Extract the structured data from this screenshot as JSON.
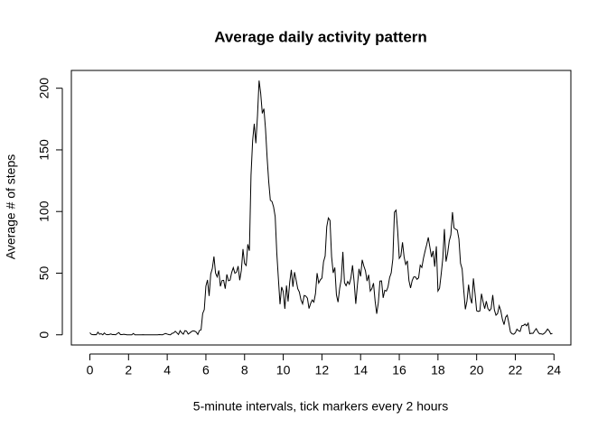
{
  "chart_data": {
    "type": "line",
    "title": "Average daily activity pattern",
    "xlabel": "5-minute intervals, tick markers every 2 hours",
    "ylabel": "Average # of steps",
    "color": "#000000",
    "xlim": [
      -0.957,
      24.873
    ],
    "ylim": [
      -8.25,
      214.42
    ],
    "xticks": [
      0,
      2,
      4,
      6,
      8,
      10,
      12,
      14,
      16,
      18,
      20,
      22,
      24
    ],
    "yticks": [
      0,
      50,
      100,
      150,
      200
    ],
    "x": [
      0,
      0.083,
      0.167,
      0.25,
      0.333,
      0.417,
      0.5,
      0.583,
      0.667,
      0.75,
      0.833,
      0.917,
      1,
      1.083,
      1.167,
      1.25,
      1.333,
      1.417,
      1.5,
      1.583,
      1.667,
      1.75,
      1.833,
      1.917,
      2,
      2.083,
      2.167,
      2.25,
      2.333,
      2.417,
      2.5,
      2.583,
      2.667,
      2.75,
      2.833,
      2.917,
      3,
      3.083,
      3.167,
      3.25,
      3.333,
      3.417,
      3.5,
      3.583,
      3.667,
      3.75,
      3.833,
      3.917,
      4,
      4.083,
      4.167,
      4.25,
      4.333,
      4.417,
      4.5,
      4.583,
      4.667,
      4.75,
      4.833,
      4.917,
      5,
      5.083,
      5.167,
      5.25,
      5.333,
      5.417,
      5.5,
      5.583,
      5.667,
      5.75,
      5.833,
      5.917,
      6,
      6.083,
      6.167,
      6.25,
      6.333,
      6.417,
      6.5,
      6.583,
      6.667,
      6.75,
      6.833,
      6.917,
      7,
      7.083,
      7.167,
      7.25,
      7.333,
      7.417,
      7.5,
      7.583,
      7.667,
      7.75,
      7.833,
      7.917,
      8,
      8.083,
      8.167,
      8.25,
      8.333,
      8.417,
      8.5,
      8.583,
      8.667,
      8.75,
      8.833,
      8.917,
      9,
      9.083,
      9.167,
      9.25,
      9.333,
      9.417,
      9.5,
      9.583,
      9.667,
      9.75,
      9.833,
      9.917,
      10,
      10.083,
      10.167,
      10.25,
      10.333,
      10.417,
      10.5,
      10.583,
      10.667,
      10.75,
      10.833,
      10.917,
      11,
      11.083,
      11.167,
      11.25,
      11.333,
      11.417,
      11.5,
      11.583,
      11.667,
      11.75,
      11.833,
      11.917,
      12,
      12.083,
      12.167,
      12.25,
      12.333,
      12.417,
      12.5,
      12.583,
      12.667,
      12.75,
      12.833,
      12.917,
      13,
      13.083,
      13.167,
      13.25,
      13.333,
      13.417,
      13.5,
      13.583,
      13.667,
      13.75,
      13.833,
      13.917,
      14,
      14.083,
      14.167,
      14.25,
      14.333,
      14.417,
      14.5,
      14.583,
      14.667,
      14.75,
      14.833,
      14.917,
      15,
      15.083,
      15.167,
      15.25,
      15.333,
      15.417,
      15.5,
      15.583,
      15.667,
      15.75,
      15.833,
      15.917,
      16,
      16.083,
      16.167,
      16.25,
      16.333,
      16.417,
      16.5,
      16.583,
      16.667,
      16.75,
      16.833,
      16.917,
      17,
      17.083,
      17.167,
      17.25,
      17.333,
      17.417,
      17.5,
      17.583,
      17.667,
      17.75,
      17.833,
      17.917,
      18,
      18.083,
      18.167,
      18.25,
      18.333,
      18.417,
      18.5,
      18.583,
      18.667,
      18.75,
      18.833,
      18.917,
      19,
      19.083,
      19.167,
      19.25,
      19.333,
      19.417,
      19.5,
      19.583,
      19.667,
      19.75,
      19.833,
      19.917,
      20,
      20.083,
      20.167,
      20.25,
      20.333,
      20.417,
      20.5,
      20.583,
      20.667,
      20.75,
      20.833,
      20.917,
      21,
      21.083,
      21.167,
      21.25,
      21.333,
      21.417,
      21.5,
      21.583,
      21.667,
      21.75,
      21.833,
      21.917,
      22,
      22.083,
      22.167,
      22.25,
      22.333,
      22.417,
      22.5,
      22.583,
      22.667,
      22.75,
      22.833,
      22.917,
      23,
      23.083,
      23.167,
      23.25,
      23.333,
      23.417,
      23.5,
      23.583,
      23.667,
      23.75,
      23.833,
      23.917
    ],
    "values": [
      1.7,
      0.3,
      0.1,
      0.2,
      0.1,
      2.1,
      0.5,
      0.9,
      0,
      1.5,
      0.3,
      0.1,
      0.3,
      0.7,
      0.2,
      0.3,
      0,
      1.1,
      1.8,
      0.2,
      0.2,
      0.4,
      0.3,
      0,
      0,
      0,
      0,
      1.1,
      0,
      0,
      0,
      0,
      0,
      0.1,
      0,
      0,
      0,
      0,
      0,
      0,
      0,
      0,
      0,
      0.2,
      0.1,
      0,
      0.6,
      1.1,
      0.6,
      0.2,
      0,
      1.2,
      1.5,
      2.9,
      1.6,
      0.3,
      3.4,
      1.6,
      0.5,
      3.4,
      3.0,
      0.6,
      1.5,
      2.6,
      3.2,
      3.0,
      2.2,
      0.3,
      3.5,
      4.0,
      17.2,
      20.5,
      39.5,
      44.5,
      31.5,
      49.3,
      53.8,
      63.5,
      50,
      47,
      52.2,
      39.3,
      44,
      44.2,
      37.4,
      49,
      43.8,
      44.4,
      50.5,
      54.5,
      49.9,
      50.8,
      55.7,
      44.3,
      52.3,
      69.5,
      57.8,
      56.2,
      73.4,
      68.2,
      129.4,
      157.5,
      171.2,
      155.4,
      177.3,
      206.2,
      195.9,
      179.6,
      183.4,
      167,
      143.5,
      124,
      109.1,
      108.1,
      103.7,
      95.9,
      66.2,
      45.2,
      24.8,
      38.8,
      35,
      21.1,
      40,
      27,
      42.4,
      52.7,
      38.9,
      50.8,
      44.3,
      37.4,
      34.7,
      28.3,
      25.1,
      31.9,
      31.4,
      29.7,
      21.3,
      25.5,
      28.3,
      26.5,
      33.4,
      50,
      42,
      44.6,
      46,
      59.2,
      63.9,
      87.7,
      94.8,
      92.8,
      63.4,
      50.2,
      54.5,
      32.4,
      26.5,
      37.7,
      45.1,
      67.3,
      42.3,
      39.8,
      43.3,
      41,
      46.2,
      56.4,
      42.8,
      25.1,
      40,
      53.5,
      47.4,
      60.8,
      55.8,
      52,
      43.6,
      48.7,
      35.5,
      37.5,
      41.9,
      27.5,
      17.1,
      26.1,
      43.6,
      43.7,
      30,
      36.1,
      35.5,
      38.8,
      46.4,
      50.2,
      61.5,
      99.5,
      101.1,
      84.3,
      62,
      64,
      75,
      63,
      57,
      60,
      44,
      38,
      44,
      47,
      47,
      45,
      46.2,
      56.4,
      54.6,
      62.1,
      67.8,
      73.1,
      79,
      71,
      63,
      68,
      55.2,
      71.8,
      35.5,
      37.8,
      49.3,
      62,
      85.8,
      59.4,
      66.2,
      76,
      81.1,
      99.5,
      86.6,
      85.6,
      84.9,
      77.8,
      58,
      53.4,
      36.3,
      20.7,
      27.4,
      40.7,
      30.2,
      25.5,
      45.7,
      33.5,
      19.6,
      19,
      19.3,
      33.3,
      26.8,
      21.2,
      27.3,
      21.3,
      19.5,
      21.3,
      32.3,
      20.2,
      15.9,
      17.2,
      23.5,
      19.5,
      12.5,
      8.2,
      14.4,
      15.9,
      9.4,
      2.2,
      0.8,
      0.5,
      1.6,
      4.6,
      3.3,
      2.8,
      7.3,
      7.6,
      8.7,
      7.3,
      9.5,
      0.9,
      1.3,
      1.2,
      3.3,
      5,
      2.5,
      0.8,
      0.8,
      0.4,
      1.2,
      2.6,
      4.7,
      3.3,
      0.7,
      1.1
    ]
  }
}
